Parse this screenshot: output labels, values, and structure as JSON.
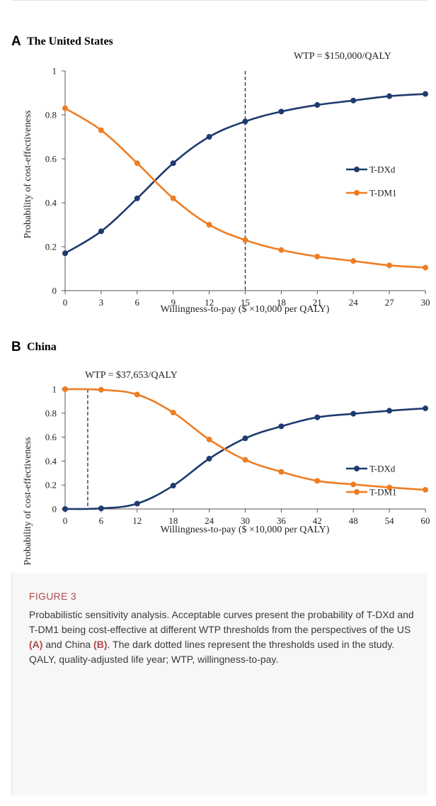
{
  "panels": [
    {
      "letter": "A",
      "title": "The United States",
      "wtp_label": "WTP = $150,000/QALY",
      "xlabel": "Willingness-to-pay ($ ×10,000 per QALY)",
      "ylabel": "Probability of cost-effectiveness"
    },
    {
      "letter": "B",
      "title": "China",
      "wtp_label": "WTP = $37,653/QALY",
      "xlabel": "Willingness-to-pay ($ ×10,000 per QALY)",
      "ylabel": "Probability of cost-effectiveness"
    }
  ],
  "chart_data": [
    {
      "type": "line",
      "title": "The United States",
      "xlabel": "Willingness-to-pay ($ ×10,000 per QALY)",
      "ylabel": "Probability of cost-effectiveness",
      "x": [
        0,
        3,
        6,
        9,
        12,
        15,
        18,
        21,
        24,
        27,
        30
      ],
      "xticks": [
        0,
        3,
        6,
        9,
        12,
        15,
        18,
        21,
        24,
        27,
        30
      ],
      "yticks": [
        0,
        0.2,
        0.4,
        0.6,
        0.8,
        1
      ],
      "ytick_labels": [
        "0",
        "0.2",
        "0.4",
        "0.6",
        "0.8",
        "1"
      ],
      "xlim": [
        0,
        30
      ],
      "ylim": [
        0,
        1
      ],
      "threshold_x": 15,
      "legend_position": "right",
      "grid": false,
      "series": [
        {
          "name": "T-DXd",
          "color": "#1f3a6e",
          "values": [
            0.17,
            0.27,
            0.42,
            0.58,
            0.7,
            0.77,
            0.815,
            0.845,
            0.865,
            0.885,
            0.895
          ]
        },
        {
          "name": "T-DM1",
          "color": "#ee7d22",
          "values": [
            0.83,
            0.73,
            0.58,
            0.42,
            0.3,
            0.23,
            0.185,
            0.155,
            0.135,
            0.115,
            0.105
          ]
        }
      ]
    },
    {
      "type": "line",
      "title": "China",
      "xlabel": "Willingness-to-pay ($ ×10,000 per QALY)",
      "ylabel": "Probability of cost-effectiveness",
      "x": [
        0,
        6,
        12,
        18,
        24,
        30,
        36,
        42,
        48,
        54,
        60
      ],
      "xticks": [
        0,
        6,
        12,
        18,
        24,
        30,
        36,
        42,
        48,
        54,
        60
      ],
      "yticks": [
        0,
        0.2,
        0.4,
        0.6,
        0.8,
        1
      ],
      "ytick_labels": [
        "0",
        "0.2",
        "0.4",
        "0.6",
        "0.8",
        "1"
      ],
      "xlim": [
        0,
        60
      ],
      "ylim": [
        0,
        1
      ],
      "threshold_x": 3.7653,
      "legend_position": "right",
      "grid": false,
      "series": [
        {
          "name": "T-DXd",
          "color": "#1f3a6e",
          "values": [
            0.0,
            0.005,
            0.045,
            0.195,
            0.42,
            0.59,
            0.69,
            0.765,
            0.795,
            0.82,
            0.84
          ]
        },
        {
          "name": "T-DM1",
          "color": "#ee7d22",
          "values": [
            1.0,
            0.995,
            0.955,
            0.805,
            0.58,
            0.41,
            0.31,
            0.235,
            0.205,
            0.18,
            0.16
          ]
        }
      ]
    }
  ],
  "caption": {
    "label": "FIGURE 3",
    "text_1": "Probabilistic sensitivity analysis. Acceptable curves present the probability of T-DXd and T-DM1 being cost-effective at different WTP thresholds from the perspectives of the US ",
    "bold_a": "(A)",
    "text_2": " and China ",
    "bold_b": "(B)",
    "text_3": ". The dark dotted lines represent the thresholds used in the study. QALY, quality-adjusted life year; WTP, willingness-to-pay."
  }
}
